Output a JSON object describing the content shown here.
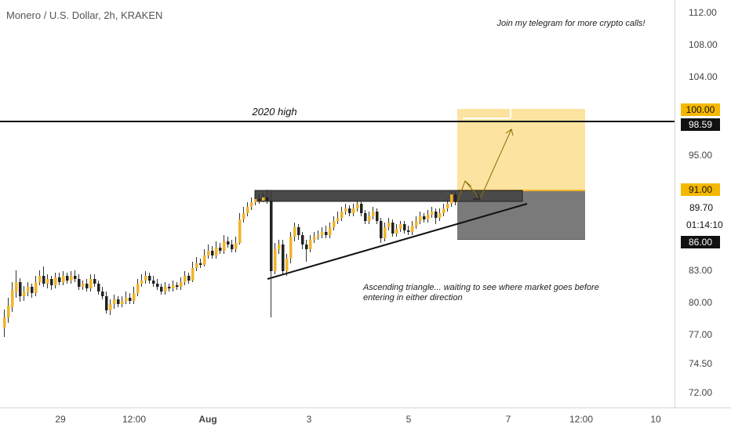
{
  "header": {
    "title": "Monero / U.S. Dollar, 2h, KRAKEN"
  },
  "annotations": {
    "telegram": "Join my telegram for more crypto calls!",
    "high_label": "2020 high",
    "triangle_note_line1": "Ascending triangle... waiting to see where market goes before",
    "triangle_note_line2": "entering in either direction"
  },
  "colors": {
    "up_candle": "#f0b429",
    "down_candle": "#222222",
    "target_zone": "#fde3a0",
    "stop_zone": "#7a7a7a",
    "resistance_box": "#4a4a4a",
    "accent_label": "#f5b800"
  },
  "price_axis": {
    "ticks": [
      "112.00",
      "108.00",
      "104.00",
      "95.00",
      "83.00",
      "80.00",
      "77.00",
      "74.50",
      "72.00"
    ],
    "labels": [
      {
        "value": 100.0,
        "text": "100.00",
        "style": "accent"
      },
      {
        "value": 98.59,
        "text": "98.59",
        "style": "dark"
      },
      {
        "value": 91.0,
        "text": "91.00",
        "style": "accent"
      },
      {
        "value": 89.7,
        "text": "89.70",
        "style": "plain"
      },
      {
        "value": 86.0,
        "text": "86.00",
        "style": "dark"
      }
    ],
    "countdown": "01:14:10"
  },
  "time_axis": {
    "ticks": [
      "29",
      "12:00",
      "Aug",
      "3",
      "5",
      "7",
      "12:00",
      "10"
    ]
  },
  "chart_data": {
    "type": "candlestick",
    "price_range": [
      71,
      114
    ],
    "resistance": 98.59,
    "zones": {
      "target": [
        91.0,
        100.0
      ],
      "stop": [
        86.0,
        91.0
      ],
      "triangle_top": [
        90.0,
        91.0
      ]
    }
  }
}
